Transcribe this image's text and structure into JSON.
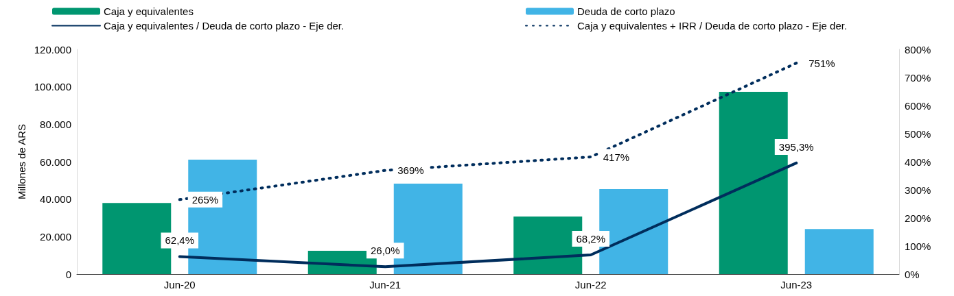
{
  "chart_data": {
    "type": "bar",
    "categories": [
      "Jun-20",
      "Jun-21",
      "Jun-22",
      "Jun-23"
    ],
    "ylabel": "Millones de ARS",
    "ylim": [
      0,
      120000
    ],
    "yticks": [
      {
        "value": 0,
        "label": "0"
      },
      {
        "value": 20000,
        "label": "20.000"
      },
      {
        "value": 40000,
        "label": "40.000"
      },
      {
        "value": 60000,
        "label": "60.000"
      },
      {
        "value": 80000,
        "label": "80.000"
      },
      {
        "value": 100000,
        "label": "100.000"
      },
      {
        "value": 120000,
        "label": "120.000"
      }
    ],
    "y2lim": [
      0,
      800
    ],
    "y2ticks": [
      {
        "value": 0,
        "label": "0%"
      },
      {
        "value": 100,
        "label": "100%"
      },
      {
        "value": 200,
        "label": "200%"
      },
      {
        "value": 300,
        "label": "300%"
      },
      {
        "value": 400,
        "label": "400%"
      },
      {
        "value": 500,
        "label": "500%"
      },
      {
        "value": 600,
        "label": "600%"
      },
      {
        "value": 700,
        "label": "700%"
      },
      {
        "value": 800,
        "label": "800%"
      }
    ],
    "series": [
      {
        "name": "Caja y equivalentes",
        "color": "#009670",
        "values": [
          38000,
          12400,
          30700,
          97300
        ]
      },
      {
        "name": "Deuda de corto plazo",
        "color": "#41b4e6",
        "values": [
          61100,
          48300,
          45400,
          24100
        ]
      },
      {
        "name": "Caja y equivalentes / Deuda de corto plazo - Eje der.",
        "type": "line",
        "axis": "y2",
        "color": "#002d5c",
        "line_style": "solid",
        "values": [
          62.4,
          26.0,
          68.2,
          395.3
        ],
        "value_labels": [
          "62,4%",
          "26,0%",
          "68,2%",
          "395,3%"
        ]
      },
      {
        "name": "Caja y equivalentes + IRR / Deuda de corto plazo - Eje der.",
        "type": "line",
        "axis": "y2",
        "color": "#002d5c",
        "line_style": "dotted",
        "values": [
          265,
          369,
          417,
          751
        ],
        "value_labels": [
          "265%",
          "369%",
          "417%",
          "751%"
        ]
      }
    ],
    "legend": "top",
    "grid": false,
    "marker": "none"
  }
}
